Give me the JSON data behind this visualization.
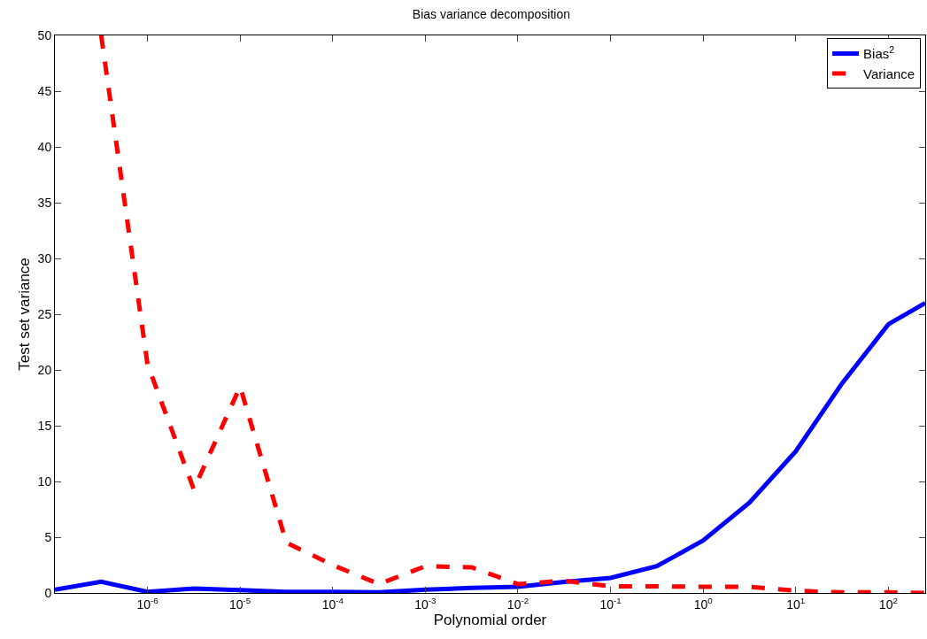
{
  "chart_data": {
    "type": "line",
    "title": "Bias variance decomposition",
    "xlabel": "Polynomial order",
    "ylabel": "Test set variance",
    "x": [
      1e-07,
      3.16e-07,
      1e-06,
      3.16e-06,
      1e-05,
      3.16e-05,
      0.0001,
      0.000316,
      0.001,
      0.00316,
      0.01,
      0.0316,
      0.1,
      0.316,
      1,
      3.16,
      10,
      31.6,
      100,
      250
    ],
    "series": [
      {
        "name": "Bias$^{2}$",
        "color": "#0000ff",
        "line_style": "solid",
        "values": [
          0.3,
          1.0,
          0.1,
          0.4,
          0.25,
          0.1,
          0.1,
          0.05,
          0.3,
          0.45,
          0.55,
          1.0,
          1.35,
          2.4,
          4.7,
          8.1,
          12.7,
          18.8,
          24.1,
          26.0
        ]
      },
      {
        "name": "Variance",
        "color": "#ff0000",
        "line_style": "dashed",
        "values": [
          null,
          50,
          20.5,
          9.3,
          18.5,
          4.5,
          2.5,
          0.8,
          2.4,
          2.3,
          0.8,
          1.1,
          0.6,
          0.6,
          0.55,
          0.55,
          0.2,
          0.05,
          0.05,
          0.0
        ]
      }
    ],
    "log": "x",
    "xlim": [
      1e-07,
      250
    ],
    "xticks": [
      {
        "value": 1e-06,
        "label": "10$^{-6}$"
      },
      {
        "value": 1e-05,
        "label": "10$^{-5}$"
      },
      {
        "value": 0.0001,
        "label": "10$^{-4}$"
      },
      {
        "value": 0.001,
        "label": "10$^{-3}$"
      },
      {
        "value": 0.01,
        "label": "10$^{-2}$"
      },
      {
        "value": 0.1,
        "label": "10$^{-1}$"
      },
      {
        "value": 1,
        "label": "10$^{0}$"
      },
      {
        "value": 10,
        "label": "10$^{1}$"
      },
      {
        "value": 100,
        "label": "10$^{2}$"
      }
    ],
    "ylim": [
      0,
      50
    ],
    "yticks": [
      0,
      5,
      10,
      15,
      20,
      25,
      30,
      35,
      40,
      45,
      50
    ],
    "legend": "top right",
    "marker": "none"
  }
}
